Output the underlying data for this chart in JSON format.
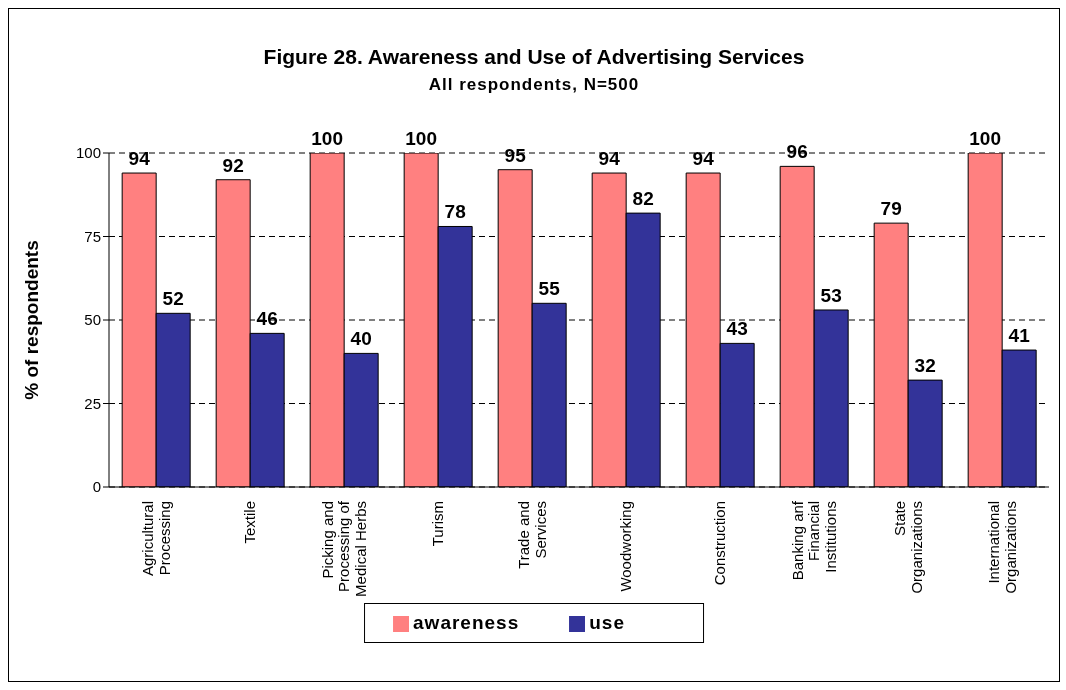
{
  "chart_data": {
    "type": "bar",
    "title": "Figure 28. Awareness and Use of Advertising Services",
    "subtitle": "All respondents, N=500",
    "ylabel": "% of respondents",
    "categories": [
      "Agricultural Processing",
      "Textile",
      "Picking and Processing of Medical Herbs",
      "Turism",
      "Trade and Services",
      "Woodworking",
      "Construction",
      "Banking anf Financial Institutions",
      "State Organizations",
      "International Organizations"
    ],
    "series": [
      {
        "name": "awareness",
        "color": "#ff8080",
        "values": [
          94,
          92,
          100,
          100,
          95,
          94,
          94,
          96,
          79,
          100
        ]
      },
      {
        "name": "use",
        "color": "#333399",
        "values": [
          52,
          46,
          40,
          78,
          55,
          82,
          43,
          53,
          32,
          41
        ]
      }
    ],
    "ylim": [
      0,
      100
    ],
    "yticks": [
      0,
      25,
      50,
      75,
      100
    ],
    "grid": "y",
    "legend": "bottom",
    "data_labels": true
  }
}
